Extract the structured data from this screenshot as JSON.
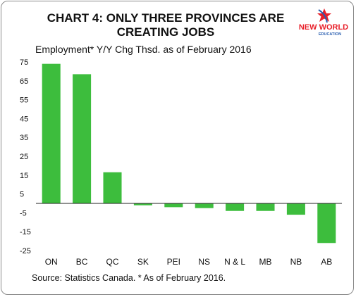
{
  "chart_data": {
    "type": "bar",
    "title": "CHART 4: ONLY THREE PROVINCES ARE CREATING JOBS",
    "subtitle": "Employment* Y/Y Chg Thsd. as of February 2016",
    "categories": [
      "ON",
      "BC",
      "QC",
      "SK",
      "PEI",
      "NS",
      "N & L",
      "MB",
      "NB",
      "AB"
    ],
    "values": [
      74,
      68.5,
      16.5,
      -1,
      -2,
      -2.5,
      -4,
      -4,
      -6,
      -21
    ],
    "ylim": [
      -25,
      75
    ],
    "yticks": [
      75,
      65,
      55,
      45,
      35,
      25,
      15,
      5,
      -5,
      -15,
      -25
    ],
    "bar_color": "#3dbd3d",
    "grid": false,
    "source": "Source: Statistics Canada. * As of February 2016."
  },
  "logo": {
    "line1": "NEW WORLD",
    "line2": "EDUCATION",
    "colors": {
      "red": "#e8202a",
      "blue": "#2a5fb0"
    }
  }
}
